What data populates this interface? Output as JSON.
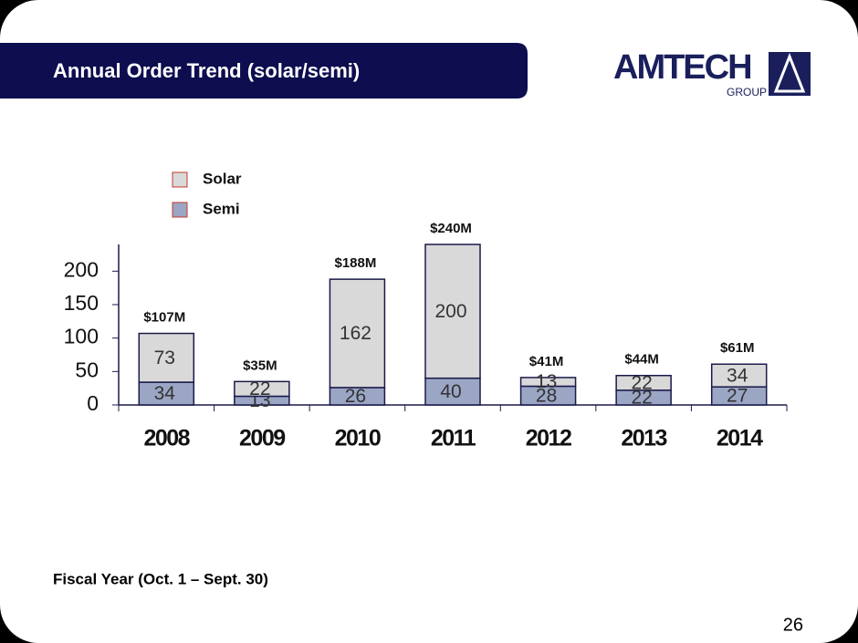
{
  "header": {
    "title": "Annual Order Trend (solar/semi)",
    "logo": "AMTECH",
    "logo_sub": "GROUP"
  },
  "chart_data": {
    "type": "stacked-bar",
    "categories": [
      "2008",
      "2009",
      "2010",
      "2011",
      "2012",
      "2013",
      "2014"
    ],
    "series": [
      {
        "name": "Semi",
        "color": "#9ba6c5",
        "values": [
          34,
          13,
          26,
          40,
          28,
          22,
          27
        ]
      },
      {
        "name": "Solar",
        "color": "#d9d9d9",
        "values": [
          73,
          22,
          162,
          200,
          13,
          22,
          34
        ]
      }
    ],
    "totals": {
      "values": [
        107,
        35,
        188,
        240,
        41,
        44,
        61
      ],
      "value_labels": [
        "$107M",
        "$35M",
        "$188M",
        "$240M",
        "$41M",
        "$44M",
        "$61M"
      ]
    },
    "ylim": [
      0,
      240
    ],
    "yticks": [
      0,
      50,
      100,
      150,
      200
    ],
    "grid": false
  },
  "footer": {
    "note": "Fiscal Year  (Oct. 1 – Sept. 30)",
    "page": "26"
  }
}
